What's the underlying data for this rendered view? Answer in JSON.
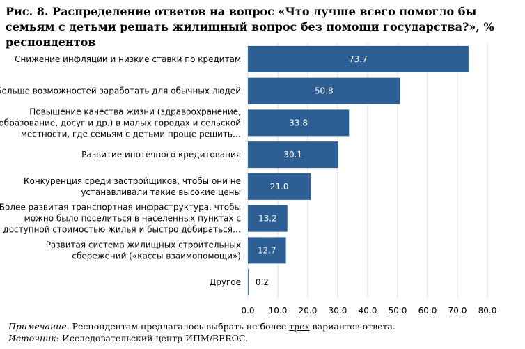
{
  "title": "Рис. 8. Распределение ответов на вопрос «Что лучше всего помогло бы семьям с детьми решать жилищный вопрос без помощи государства?», % респондентов",
  "chart_data": {
    "type": "bar",
    "orientation": "horizontal",
    "categories": [
      [
        "Снижение инфляции и низкие ставки по кредитам"
      ],
      [
        "Больше возможностей заработать для обычных людей"
      ],
      [
        "Повышение качества жизни (здравоохранение,",
        "образование, досуг и др.) в малых городах и сельской",
        "местности, где семьям с детьми проще решить…"
      ],
      [
        "Развитие ипотечного кредитования"
      ],
      [
        "Конкуренция среди застройщиков, чтобы они не",
        "устанавливали такие высокие цены"
      ],
      [
        "Более развитая транспортная инфраструктура, чтобы",
        "можно было поселиться в населенных пунктах с",
        "доступной стоимостью жилья и быстро добираться…"
      ],
      [
        "Развитая система жилищных строительных",
        "сбережений («кассы взаимопомощи»)"
      ],
      [
        "Другое"
      ]
    ],
    "values": [
      73.7,
      50.8,
      33.8,
      30.1,
      21.0,
      13.2,
      12.7,
      0.2
    ],
    "value_labels": [
      "73.7",
      "50.8",
      "33.8",
      "30.1",
      "21.0",
      "13.2",
      "12.7",
      "0.2"
    ],
    "xlim": [
      0,
      80
    ],
    "ticks": [
      "0.0",
      "10.0",
      "20.0",
      "30.0",
      "40.0",
      "50.0",
      "60.0",
      "70.0",
      "80.0"
    ],
    "grid": true,
    "bar_color": "#2e5f94",
    "grid_color": "#d9d9d9"
  },
  "notes": {
    "note_label": "Примечание",
    "note_pre": ". Респондентам предлагалось выбрать не более ",
    "note_under": "трех",
    "note_post": " вариантов ответа.",
    "source_label": "Источник",
    "source_text": ": Исследовательский центр ИПМ/BEROC."
  }
}
